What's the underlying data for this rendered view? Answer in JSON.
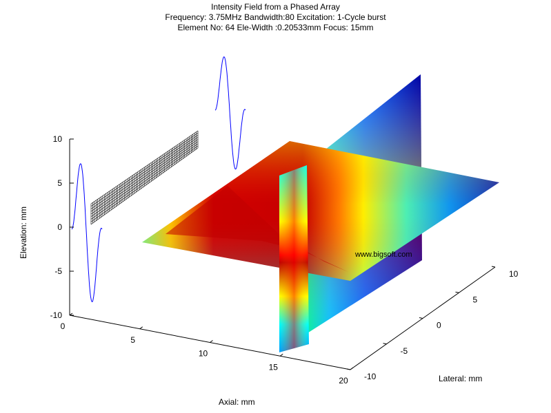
{
  "chart_data": {
    "type": "3d-surface",
    "title": [
      "Intensity Field from a Phased Array",
      "Frequency: 3.75MHz  Bandwidth:80 Excitation: 1-Cycle burst",
      "Element No: 64 Ele-Width :0.20533mm Focus: 15mm"
    ],
    "xlabel": "Axial: mm",
    "ylabel": "Lateral: mm",
    "zlabel": "Elevation: mm",
    "x_ticks": [
      "0",
      "5",
      "10",
      "15",
      "20"
    ],
    "y_ticks": [
      "-10",
      "-5",
      "0",
      "5",
      "10"
    ],
    "z_ticks": [
      "10",
      "5",
      "0",
      "-5",
      "-10"
    ],
    "xlim": [
      0,
      20
    ],
    "ylim": [
      -10,
      10
    ],
    "zlim": [
      -10,
      10
    ],
    "focus_mm": 15,
    "colormap": "jet",
    "watermark": "www.bigsoft.com",
    "colors": {
      "high": "#c00000",
      "mid": "#ffff00",
      "low": "#00008f",
      "wave": "#0000ff",
      "array": "#000000"
    }
  }
}
